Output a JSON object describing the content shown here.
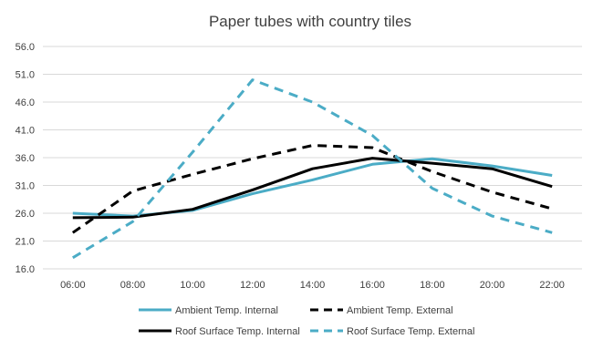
{
  "chart_data": {
    "type": "line",
    "title": "Paper tubes with country tiles",
    "xlabel": "",
    "ylabel": "",
    "categories": [
      "06:00",
      "08:00",
      "10:00",
      "12:00",
      "14:00",
      "16:00",
      "18:00",
      "20:00",
      "22:00"
    ],
    "y_ticks": [
      "16.0",
      "21.0",
      "26.0",
      "31.0",
      "36.0",
      "41.0",
      "46.0",
      "51.0",
      "56.0"
    ],
    "ylim": [
      16,
      56
    ],
    "grid": "horizontal",
    "legend_position": "bottom",
    "series": [
      {
        "name": "Ambient Temp. Internal",
        "color": "#4bacc6",
        "dash": "solid",
        "values": [
          26.0,
          25.5,
          26.5,
          29.5,
          32.0,
          34.8,
          35.8,
          34.5,
          32.8
        ]
      },
      {
        "name": "Ambient Temp. External",
        "color": "#000000",
        "dash": "dashed",
        "values": [
          22.5,
          30.0,
          33.0,
          35.8,
          38.2,
          37.8,
          33.5,
          29.8,
          26.8
        ]
      },
      {
        "name": "Roof Surface Temp. Internal",
        "color": "#000000",
        "dash": "solid",
        "values": [
          25.2,
          25.3,
          26.7,
          30.2,
          34.0,
          35.9,
          35.0,
          34.0,
          30.8
        ]
      },
      {
        "name": "Roof Surface Temp. External",
        "color": "#4bacc6",
        "dash": "dashed",
        "values": [
          18.0,
          24.5,
          37.0,
          50.0,
          46.0,
          40.0,
          30.5,
          25.5,
          22.5
        ]
      }
    ]
  }
}
